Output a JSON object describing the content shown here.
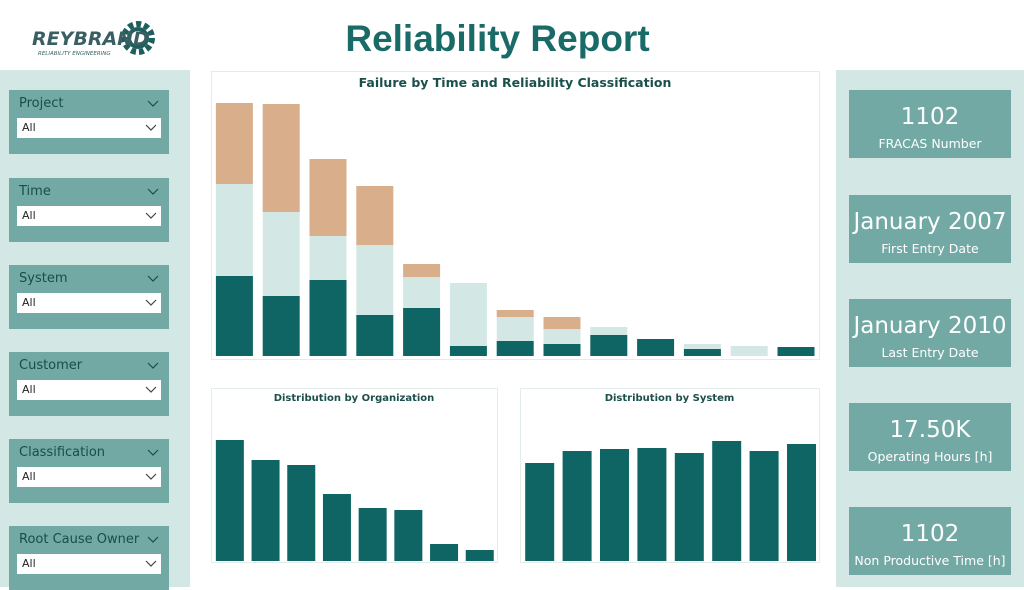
{
  "header": {
    "logo": "REYBRAND",
    "logo_tagline": "RELIABILITY ENGINEERING",
    "title": "Reliability Report"
  },
  "filters": [
    {
      "label": "Project",
      "value": "All"
    },
    {
      "label": "Time",
      "value": "All"
    },
    {
      "label": "System",
      "value": "All"
    },
    {
      "label": "Customer",
      "value": "All"
    },
    {
      "label": "Classification",
      "value": "All"
    },
    {
      "label": "Root Cause Owner",
      "value": "All"
    }
  ],
  "cards": [
    {
      "value": "1102",
      "label": "FRACAS Number"
    },
    {
      "value": "January 2007",
      "label": "First Entry Date"
    },
    {
      "value": "January 2010",
      "label": "Last Entry Date"
    },
    {
      "value": "17.50K",
      "label": "Operating Hours [h]"
    },
    {
      "value": "1102",
      "label": "Non Productive Time [h]"
    }
  ],
  "chart_data": [
    {
      "type": "stacked-bar",
      "title": "Failure by Time and Reliability Classification",
      "series": [
        {
          "color": "#0f6563",
          "values": [
            80,
            60,
            76,
            41,
            48,
            10,
            15,
            12,
            21,
            17,
            7,
            0,
            9
          ]
        },
        {
          "color": "#d3e8e4",
          "values": [
            92,
            84,
            44,
            70,
            31,
            63,
            24,
            15,
            8,
            0,
            5,
            10,
            0
          ]
        },
        {
          "color": "#d9ae8a",
          "values": [
            81,
            108,
            77,
            59,
            13,
            0,
            7,
            12,
            0,
            0,
            0,
            0,
            0
          ]
        }
      ]
    },
    {
      "type": "bar",
      "title": "Distribution by Organization",
      "color": "#0f6563",
      "values": [
        121,
        101,
        96,
        67,
        53,
        51,
        17,
        11
      ]
    },
    {
      "type": "bar",
      "title": "Distribution by System",
      "color": "#0f6563",
      "values": [
        98,
        110,
        112,
        113,
        108,
        120,
        110,
        117
      ]
    }
  ]
}
